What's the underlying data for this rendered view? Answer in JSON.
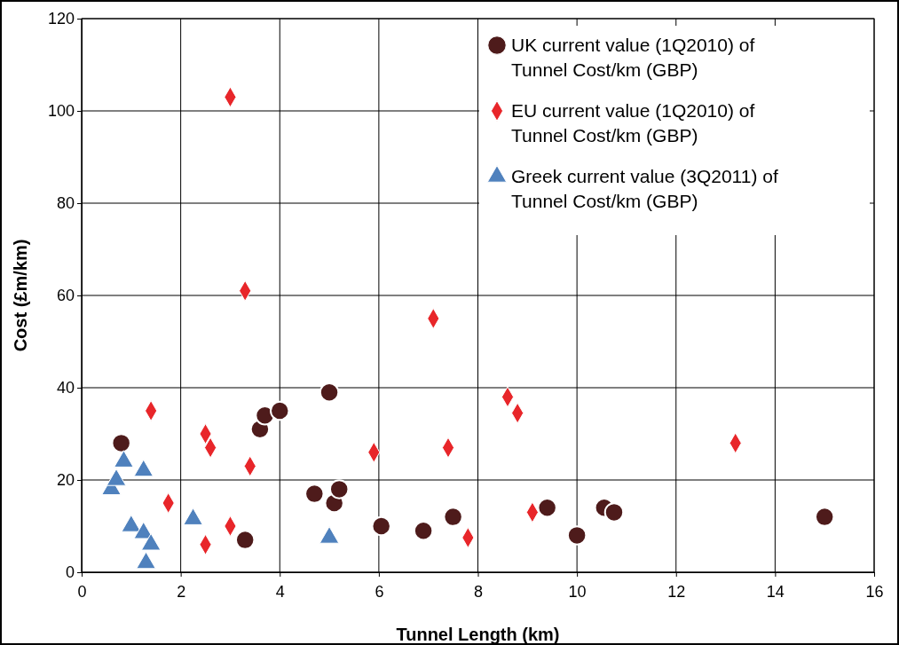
{
  "chart_data": {
    "type": "scatter",
    "xlabel": "Tunnel Length (km)",
    "ylabel": "Cost (£m/km)",
    "xlim": [
      0,
      16
    ],
    "xticks": [
      0,
      2,
      4,
      6,
      8,
      10,
      12,
      14,
      16
    ],
    "ylim": [
      0,
      120
    ],
    "yticks": [
      0,
      20,
      40,
      60,
      80,
      100,
      120
    ],
    "grid": true,
    "legend": "top right",
    "series": [
      {
        "name": "UK current value (1Q2010) of Tunnel Cost/km (GBP)",
        "color": "#4e1b1b",
        "marker": "circle",
        "x": [
          0.8,
          3.3,
          3.6,
          3.7,
          4,
          5,
          4.7,
          5.1,
          5.2,
          6.05,
          6.9,
          7.5,
          9.4,
          10,
          10.55,
          10.75,
          15
        ],
        "values": [
          28,
          7,
          31,
          34,
          35,
          39,
          17,
          15,
          18,
          10,
          9,
          12,
          14,
          8,
          14,
          13,
          12
        ]
      },
      {
        "name": "EU current value (1Q2010) of Tunnel Cost/km (GBP)",
        "color": "#e8262a",
        "marker": "diamond",
        "x": [
          3,
          3.3,
          1.4,
          2.5,
          2.6,
          1.75,
          2.5,
          3,
          3.4,
          5.9,
          7.1,
          7.4,
          8.6,
          8.8,
          9.1,
          7.8,
          13.2
        ],
        "values": [
          103,
          61,
          35,
          30,
          27,
          15,
          6,
          10,
          23,
          26,
          55,
          27,
          38,
          34.5,
          13,
          7.5,
          28
        ]
      },
      {
        "name": "Greek current value (3Q2011) of Tunnel Cost/km (GBP)",
        "color": "#4f81bd",
        "marker": "triangle",
        "x": [
          0.6,
          0.7,
          0.85,
          1.25,
          1,
          1.25,
          1.4,
          1.3,
          2.25,
          5
        ],
        "values": [
          18,
          20,
          24,
          22,
          10,
          8.5,
          6,
          2,
          11.5,
          7.5
        ]
      }
    ]
  }
}
